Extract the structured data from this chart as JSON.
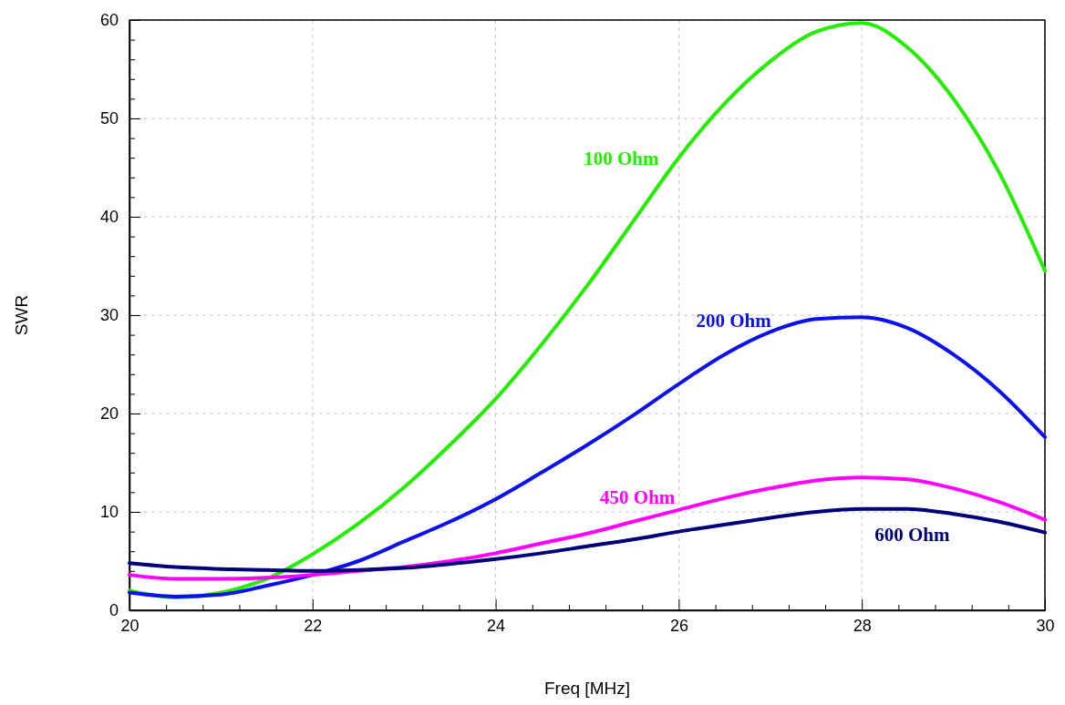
{
  "chart_data": {
    "type": "line",
    "xlabel": "Freq [MHz]",
    "ylabel": "SWR",
    "x": [
      20,
      20.5,
      21,
      21.5,
      22,
      22.5,
      23,
      23.5,
      24,
      24.5,
      25,
      25.5,
      26,
      26.5,
      27,
      27.5,
      28,
      28.5,
      29,
      29.5,
      30
    ],
    "xlim": [
      20,
      30
    ],
    "ylim": [
      0,
      60
    ],
    "xticks": [
      20,
      {
        "value": 20.4,
        "label": null
      },
      {
        "value": 20.8,
        "label": null
      },
      {
        "value": 21.2,
        "label": null
      },
      {
        "value": 21.6,
        "label": null
      },
      22,
      {
        "value": 22.4,
        "label": null
      },
      {
        "value": 22.8,
        "label": null
      },
      {
        "value": 23.2,
        "label": null
      },
      {
        "value": 23.6,
        "label": null
      },
      24,
      {
        "value": 24.4,
        "label": null
      },
      {
        "value": 24.8,
        "label": null
      },
      {
        "value": 25.2,
        "label": null
      },
      {
        "value": 25.6,
        "label": null
      },
      26,
      {
        "value": 26.4,
        "label": null
      },
      {
        "value": 26.8,
        "label": null
      },
      {
        "value": 27.2,
        "label": null
      },
      {
        "value": 27.6,
        "label": null
      },
      28,
      {
        "value": 28.4,
        "label": null
      },
      {
        "value": 28.8,
        "label": null
      },
      {
        "value": 29.2,
        "label": null
      },
      {
        "value": 29.6,
        "label": null
      },
      30
    ],
    "yticks": [
      0,
      {
        "value": 2,
        "label": null
      },
      {
        "value": 4,
        "label": null
      },
      {
        "value": 6,
        "label": null
      },
      {
        "value": 8,
        "label": null
      },
      10,
      {
        "value": 12,
        "label": null
      },
      {
        "value": 14,
        "label": null
      },
      {
        "value": 16,
        "label": null
      },
      {
        "value": 18,
        "label": null
      },
      20,
      {
        "value": 22,
        "label": null
      },
      {
        "value": 24,
        "label": null
      },
      {
        "value": 26,
        "label": null
      },
      {
        "value": 28,
        "label": null
      },
      30,
      {
        "value": 32,
        "label": null
      },
      {
        "value": 34,
        "label": null
      },
      {
        "value": 36,
        "label": null
      },
      {
        "value": 38,
        "label": null
      },
      40,
      {
        "value": 42,
        "label": null
      },
      {
        "value": 44,
        "label": null
      },
      {
        "value": 46,
        "label": null
      },
      {
        "value": 48,
        "label": null
      },
      50,
      {
        "value": 52,
        "label": null
      },
      {
        "value": 54,
        "label": null
      },
      {
        "value": 56,
        "label": null
      },
      {
        "value": 58,
        "label": null
      },
      60
    ],
    "grid": true,
    "marker": "none",
    "line_style": "solid",
    "series": [
      {
        "name": "100 Ohm",
        "color": "#22ee00",
        "values": [
          2,
          1.3,
          1.8,
          3.2,
          5.7,
          8.8,
          12.5,
          16.8,
          21.5,
          27,
          33,
          39.5,
          46,
          51.5,
          55.8,
          58.8,
          59.7,
          57.2,
          52,
          44.5,
          34.5
        ]
      },
      {
        "name": "200 Ohm",
        "color": "#0a10ee",
        "values": [
          1.8,
          1.4,
          1.6,
          2.5,
          3.6,
          5,
          7,
          9,
          11.3,
          14,
          16.8,
          19.8,
          23,
          26,
          28.3,
          29.6,
          29.8,
          28.7,
          26,
          22.3,
          17.6
        ]
      },
      {
        "name": "450 Ohm",
        "color": "#ff00ff",
        "values": [
          3.6,
          3.2,
          3.2,
          3.3,
          3.6,
          4,
          4.4,
          5,
          5.8,
          6.8,
          7.8,
          9,
          10.2,
          11.4,
          12.4,
          13.2,
          13.5,
          13.3,
          12.4,
          11,
          9.2
        ]
      },
      {
        "name": "600 Ohm",
        "color": "#00007a",
        "values": [
          4.8,
          4.4,
          4.2,
          4.1,
          4,
          4.1,
          4.3,
          4.7,
          5.2,
          5.8,
          6.5,
          7.2,
          8,
          8.7,
          9.4,
          10,
          10.3,
          10.3,
          9.8,
          9,
          7.9
        ]
      }
    ]
  }
}
